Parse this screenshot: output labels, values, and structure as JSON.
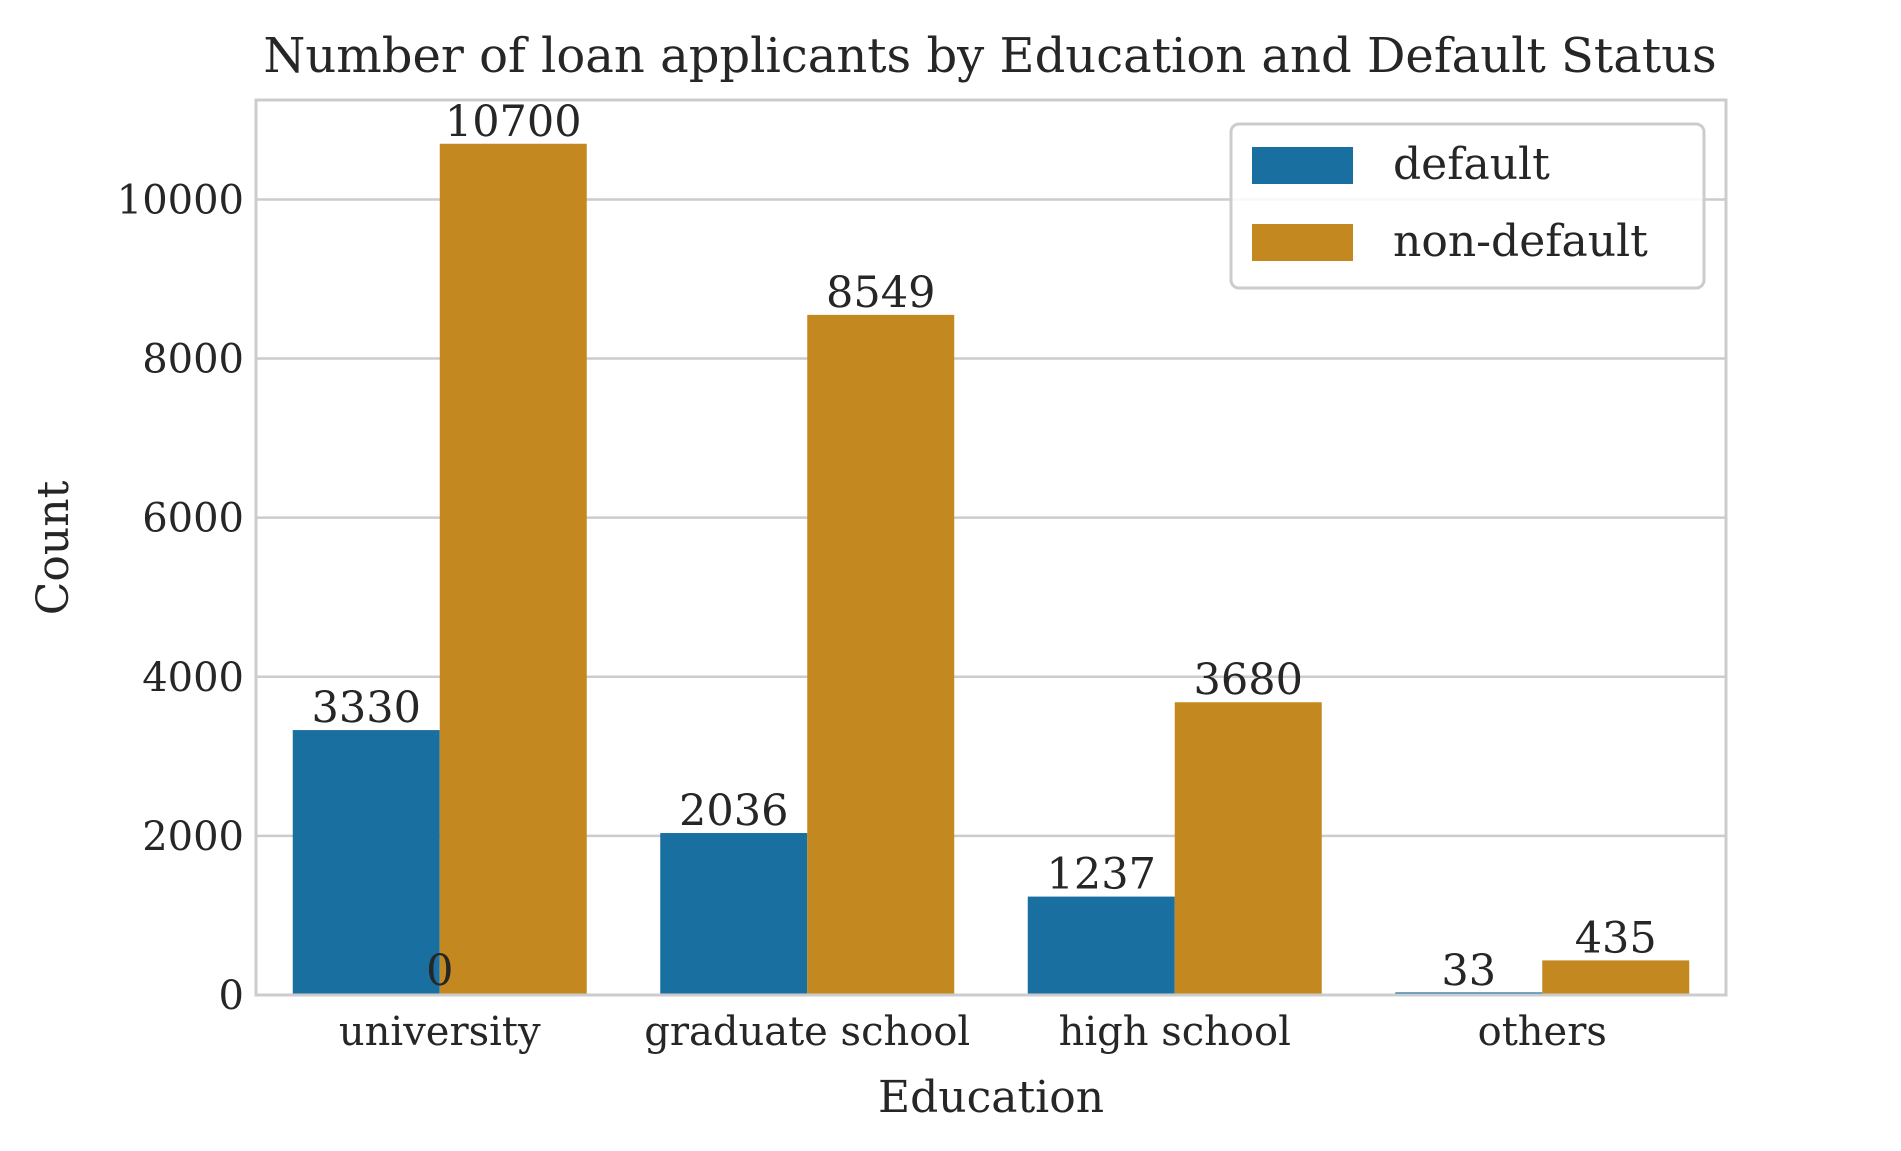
{
  "chart_data": {
    "type": "bar",
    "title": "Number of loan applicants by Education and Default Status",
    "xlabel": "Education",
    "ylabel": "Count",
    "categories": [
      "university",
      "graduate school",
      "high school",
      "others"
    ],
    "series": [
      {
        "name": "default",
        "values": [
          3330,
          2036,
          1237,
          33
        ],
        "color": "#1a6fa1"
      },
      {
        "name": "non-default",
        "values": [
          10700,
          8549,
          3680,
          435
        ],
        "color": "#c38820"
      }
    ],
    "ylim": [
      0,
      11250
    ],
    "yticks": [
      "0",
      "2000",
      "4000",
      "6000",
      "8000",
      "10000"
    ],
    "bar_labels": [
      [
        "3330",
        "2036",
        "1237",
        "33"
      ],
      [
        "10700",
        "8549",
        "3680",
        "435"
      ]
    ],
    "extra_label": "0",
    "grid": "horizontal",
    "legend_position": "top-right"
  }
}
